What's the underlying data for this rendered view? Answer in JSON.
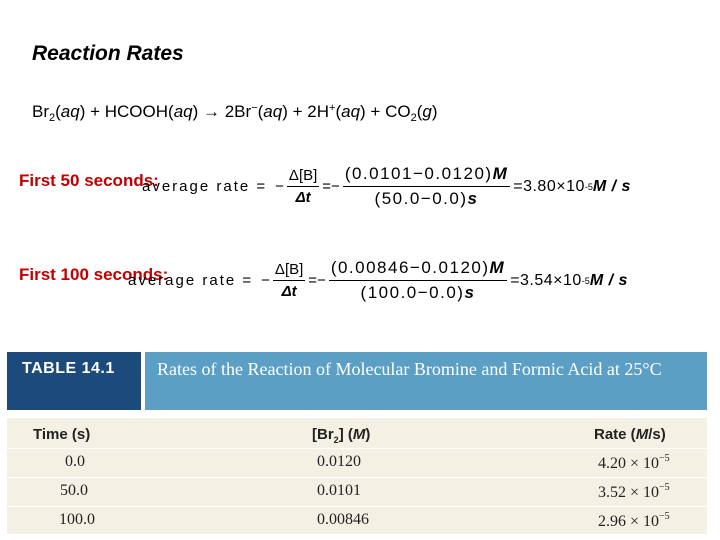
{
  "title": "Reaction Rates",
  "reaction": [
    {
      "t": "Br"
    },
    {
      "t": "2",
      "k": "sub"
    },
    {
      "t": "("
    },
    {
      "t": "aq",
      "k": "i"
    },
    {
      "t": ") + HCOOH("
    },
    {
      "t": "aq",
      "k": "i"
    },
    {
      "t": ") → 2Br"
    },
    {
      "t": "−",
      "k": "sup"
    },
    {
      "t": "("
    },
    {
      "t": "aq",
      "k": "i"
    },
    {
      "t": ") + 2H"
    },
    {
      "t": "+",
      "k": "sup"
    },
    {
      "t": "("
    },
    {
      "t": "aq",
      "k": "i"
    },
    {
      "t": ") + CO"
    },
    {
      "t": "2",
      "k": "sub"
    },
    {
      "t": "("
    },
    {
      "t": "g",
      "k": "i"
    },
    {
      "t": ")"
    }
  ],
  "equations": [
    {
      "label": "First 50 seconds:",
      "prefix": "average rate =",
      "minus": "−",
      "d_num": "Δ[B]",
      "d_den": "Δt",
      "eqminus": "=−",
      "num": "(0.0101−0.0120)",
      "num_unit": "M",
      "den": "(50.0−0.0)",
      "den_unit": "s",
      "result": "=3.80×10",
      "exp": "-5",
      "unit": "M / s"
    },
    {
      "label": "First 100 seconds:",
      "prefix": "average rate =",
      "minus": "−",
      "d_num": "Δ[B]",
      "d_den": "Δt",
      "eqminus": "=−",
      "num": "(0.00846−0.0120)",
      "num_unit": "M",
      "den": "(100.0−0.0)",
      "den_unit": "s",
      "result": "=3.54×10",
      "exp": "-5",
      "unit": "M / s"
    }
  ],
  "table": {
    "number": "TABLE 14.1",
    "caption": "Rates of the Reaction of Molecular Bromine and Formic Acid at 25°C",
    "headers": {
      "time": "Time (s)",
      "br_pre": "[Br",
      "br_sub": "2",
      "br_post": "] (",
      "br_unit": "M",
      "br_end": ")",
      "rate_pre": "Rate (",
      "rate_unit": "M",
      "rate_post": "/s)"
    },
    "rows": [
      {
        "time": "0.0",
        "br2": "0.0120",
        "rate": "4.20 × 10",
        "exp": "−5"
      },
      {
        "time": "50.0",
        "br2": "0.0101",
        "rate": "3.52 × 10",
        "exp": "−5"
      },
      {
        "time": "100.0",
        "br2": "0.00846",
        "rate": "2.96 × 10",
        "exp": "−5"
      }
    ],
    "colors": {
      "number_bg": "#1c4a7b",
      "caption_bg": "#5b9fc5",
      "body_bg": "#f4f0e4"
    }
  }
}
